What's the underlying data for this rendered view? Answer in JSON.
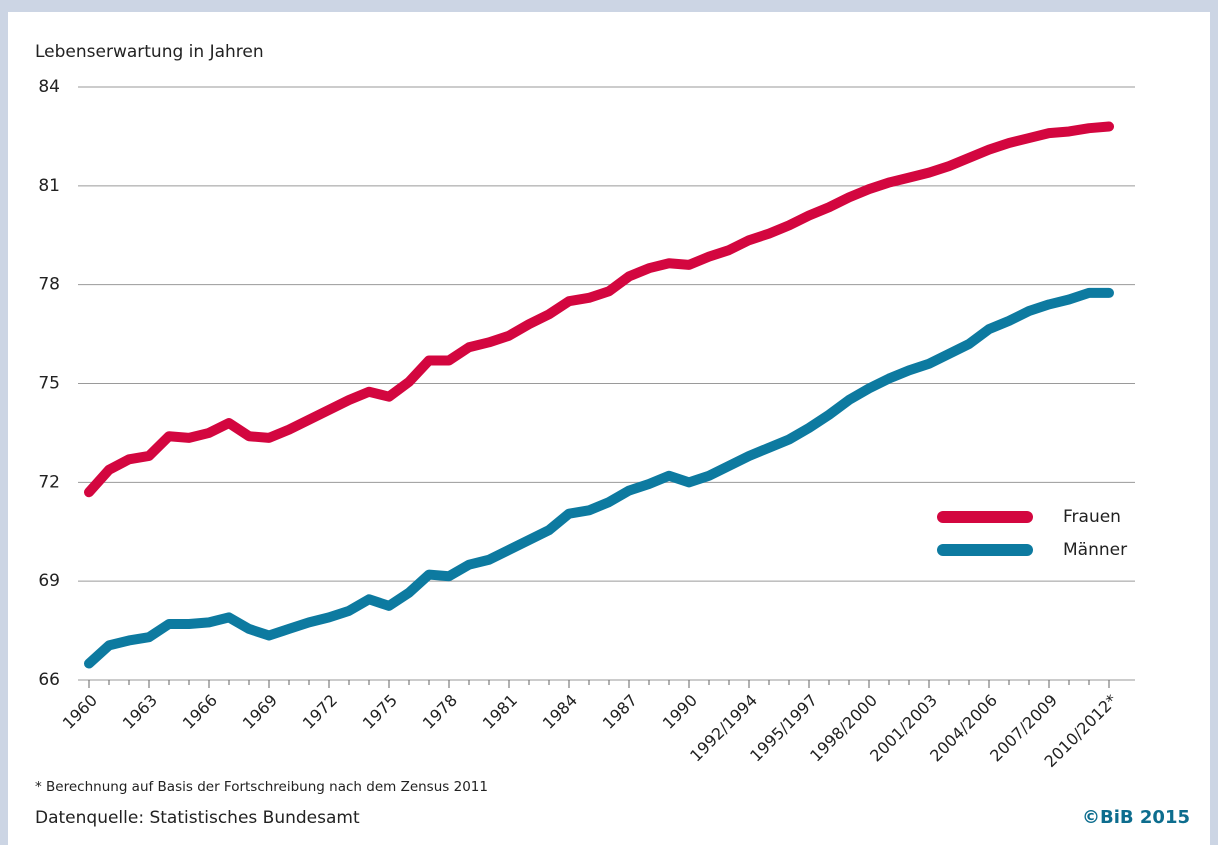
{
  "chart_data": {
    "type": "line",
    "y_label": "Lebenserwartung in Jahren",
    "categories": [
      "1960",
      null,
      null,
      "1963",
      null,
      null,
      "1966",
      null,
      null,
      "1969",
      null,
      null,
      "1972",
      null,
      null,
      "1975",
      null,
      null,
      "1978",
      null,
      null,
      "1981",
      null,
      null,
      "1984",
      null,
      null,
      "1987",
      null,
      null,
      "1990",
      null,
      null,
      "1992/1994",
      null,
      null,
      "1995/1997",
      null,
      null,
      "1998/2000",
      null,
      null,
      "2001/2003",
      null,
      null,
      "2004/2006",
      null,
      null,
      "2007/2009",
      null,
      null,
      "2010/2012*"
    ],
    "series": [
      {
        "name": "Frauen",
        "color": "#d3063f",
        "values": [
          71.7,
          72.38,
          72.7,
          72.8,
          73.4,
          73.35,
          73.5,
          73.8,
          73.4,
          73.35,
          73.6,
          73.9,
          74.2,
          74.5,
          74.75,
          74.6,
          75.05,
          75.7,
          75.7,
          76.1,
          76.25,
          76.45,
          76.8,
          77.1,
          77.5,
          77.6,
          77.8,
          78.25,
          78.5,
          78.65,
          78.6,
          78.85,
          79.05,
          79.35,
          79.55,
          79.8,
          80.1,
          80.35,
          80.65,
          80.9,
          81.1,
          81.25,
          81.4,
          81.6,
          81.85,
          82.1,
          82.3,
          82.45,
          82.6,
          82.65,
          82.75,
          82.8
        ]
      },
      {
        "name": "Männer",
        "color": "#0d7aa0",
        "values": [
          66.5,
          67.05,
          67.2,
          67.3,
          67.7,
          67.7,
          67.75,
          67.9,
          67.55,
          67.35,
          67.55,
          67.75,
          67.9,
          68.1,
          68.45,
          68.25,
          68.65,
          69.2,
          69.15,
          69.5,
          69.65,
          69.95,
          70.25,
          70.55,
          71.05,
          71.15,
          71.4,
          71.75,
          71.95,
          72.2,
          72.0,
          72.2,
          72.5,
          72.8,
          73.05,
          73.3,
          73.65,
          74.05,
          74.5,
          74.85,
          75.15,
          75.4,
          75.6,
          75.9,
          76.2,
          76.65,
          76.9,
          77.2,
          77.4,
          77.55,
          77.75,
          77.75
        ]
      }
    ],
    "ylim": [
      66,
      84
    ],
    "yticks": [
      66,
      69,
      72,
      75,
      78,
      81,
      84
    ],
    "grid": true,
    "footnote": "* Berechnung auf Basis der Fortschreibung nach dem Zensus 2011",
    "source": "Datenquelle: Statistisches Bundesamt",
    "copyright": "©BiB 2015"
  }
}
